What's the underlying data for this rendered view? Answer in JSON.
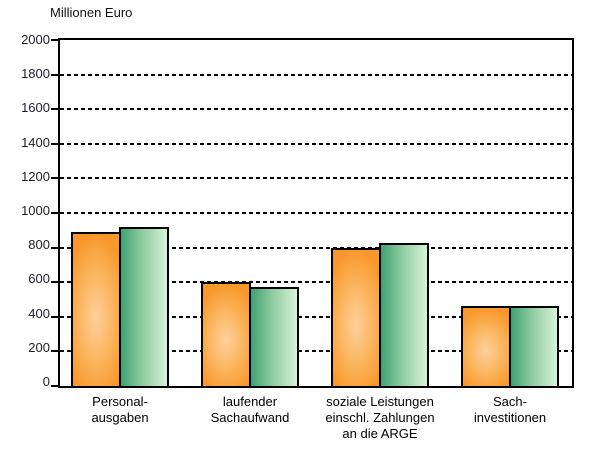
{
  "chart_data": {
    "type": "bar",
    "title": "Millionen Euro",
    "categories": [
      [
        "Personal-",
        "ausgaben"
      ],
      [
        "laufender",
        "Sachaufwand"
      ],
      [
        "soziale Leistungen",
        "einschl. Zahlungen",
        "an  die ARGE"
      ],
      [
        "Sach-",
        "investitionen"
      ]
    ],
    "series": [
      {
        "name": "orange",
        "color": "#F8982C",
        "values": [
          890,
          600,
          800,
          460
        ]
      },
      {
        "name": "green",
        "color": "#3FA273",
        "values": [
          920,
          570,
          825,
          460
        ]
      }
    ],
    "ylabel": "Millionen Euro",
    "ylim": [
      0,
      2000
    ],
    "ytick_step": 200,
    "yticks": [
      0,
      200,
      400,
      600,
      800,
      1000,
      1200,
      1400,
      1600,
      1800,
      2000
    ],
    "grid": "horizontal-dashed",
    "legend": "none"
  }
}
